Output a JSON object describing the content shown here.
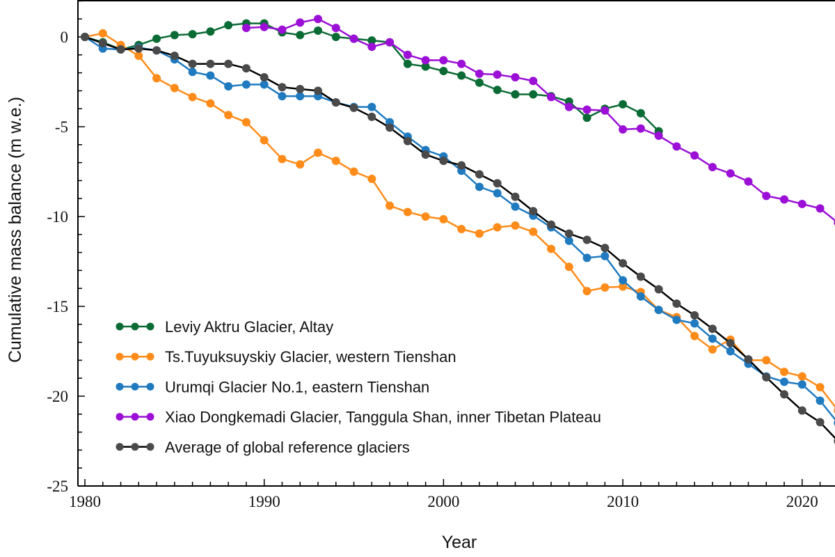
{
  "chart_data": {
    "type": "line",
    "title": "",
    "xlabel": "Year",
    "ylabel": "Cumulative mass balance (m w.e.)",
    "xlim": [
      1979.6,
      2023
    ],
    "ylim": [
      -25,
      2.1
    ],
    "xticks": [
      "1980",
      "1990",
      "2000",
      "2010",
      "2020"
    ],
    "yticks": [
      "0",
      "-5",
      "-10",
      "-15",
      "-20",
      "-25"
    ],
    "grid": false,
    "legend_position": "bottom-left",
    "series": [
      {
        "name": "Leviy Aktru Glacier, Altay",
        "color": "#0b6b35",
        "x_start": 1980,
        "values": [
          0,
          -0.3,
          -0.7,
          -0.45,
          -0.1,
          0.1,
          0.15,
          0.3,
          0.65,
          0.75,
          0.75,
          0.25,
          0.1,
          0.35,
          0,
          -0.1,
          -0.2,
          -0.3,
          -1.5,
          -1.65,
          -1.9,
          -2.15,
          -2.55,
          -2.95,
          -3.2,
          -3.2,
          -3.3,
          -3.6,
          -4.5,
          -4.0,
          -3.75,
          -4.25,
          -5.25
        ]
      },
      {
        "name": "Ts.Tuyuksuyskiy Glacier, western Tienshan",
        "color": "#ff8c1a",
        "x_start": 1980,
        "values": [
          0,
          0.2,
          -0.45,
          -1.05,
          -2.3,
          -2.85,
          -3.35,
          -3.7,
          -4.35,
          -4.75,
          -5.75,
          -6.8,
          -7.1,
          -6.45,
          -6.9,
          -7.5,
          -7.9,
          -9.4,
          -9.75,
          -10,
          -10.15,
          -10.7,
          -10.95,
          -10.6,
          -10.5,
          -10.85,
          -11.8,
          -12.8,
          -14.15,
          -13.95,
          -13.9,
          -14.2,
          -15.2,
          -15.6,
          -16.65,
          -17.4,
          -16.85,
          -18.0,
          -18.0,
          -18.65,
          -18.9,
          -19.5,
          -20.8
        ]
      },
      {
        "name": "Urumqi Glacier No.1, eastern Tienshan",
        "color": "#1f7ac0",
        "x_start": 1980,
        "values": [
          0,
          -0.65,
          -0.7,
          -0.6,
          -0.75,
          -1.25,
          -1.95,
          -2.15,
          -2.75,
          -2.65,
          -2.65,
          -3.3,
          -3.3,
          -3.3,
          -3.65,
          -3.9,
          -3.9,
          -4.75,
          -5.55,
          -6.3,
          -6.65,
          -7.45,
          -8.35,
          -8.7,
          -9.45,
          -9.95,
          -10.6,
          -11.35,
          -12.3,
          -12.2,
          -13.55,
          -14.45,
          -15.2,
          -15.75,
          -15.95,
          -16.8,
          -17.5,
          -18.2,
          -18.9,
          -19.2,
          -19.35,
          -20.25,
          -21.5
        ]
      },
      {
        "name": "Xiao Dongkemadi Glacier, Tanggula Shan, inner Tibetan Plateau",
        "color": "#9b0fd6",
        "x_start": 1989,
        "values": [
          0.5,
          0.55,
          0.4,
          0.8,
          1.0,
          0.5,
          -0.1,
          -0.55,
          -0.3,
          -1.0,
          -1.3,
          -1.3,
          -1.5,
          -2.05,
          -2.1,
          -2.25,
          -2.45,
          -3.35,
          -3.9,
          -4.05,
          -4.1,
          -5.15,
          -5.1,
          -5.5,
          -6.1,
          -6.6,
          -7.25,
          -7.6,
          -8.05,
          -8.85,
          -9.05,
          -9.3,
          -9.55,
          -10.35
        ]
      },
      {
        "name": "Average of global reference glaciers",
        "color": "#4a4a4a",
        "line_color": "#000000",
        "x_start": 1980,
        "values": [
          0,
          -0.35,
          -0.7,
          -0.65,
          -0.75,
          -1.05,
          -1.5,
          -1.5,
          -1.5,
          -1.75,
          -2.25,
          -2.8,
          -2.9,
          -3.0,
          -3.65,
          -3.95,
          -4.45,
          -5.05,
          -5.8,
          -6.55,
          -6.9,
          -7.15,
          -7.65,
          -8.15,
          -8.9,
          -9.7,
          -10.45,
          -10.95,
          -11.3,
          -11.75,
          -12.6,
          -13.35,
          -14.05,
          -14.85,
          -15.5,
          -16.25,
          -17.05,
          -17.95,
          -18.95,
          -19.9,
          -20.8,
          -21.45,
          -22.5
        ]
      }
    ]
  }
}
